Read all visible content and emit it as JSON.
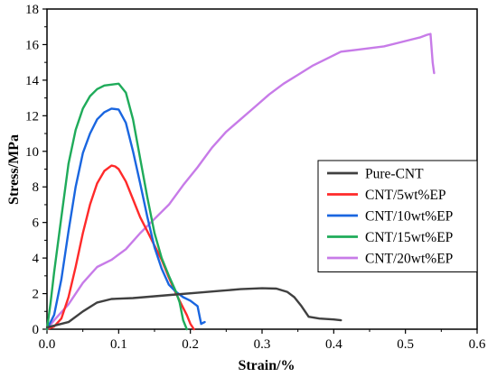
{
  "chart_data": {
    "type": "line",
    "xlabel": "Strain/%",
    "ylabel": "Stress/MPa",
    "xlim": [
      0.0,
      0.6
    ],
    "ylim": [
      0,
      18
    ],
    "xticks": [
      "0.0",
      "0.1",
      "0.2",
      "0.3",
      "0.4",
      "0.5",
      "0.6"
    ],
    "yticks": [
      "0",
      "2",
      "4",
      "6",
      "8",
      "10",
      "12",
      "14",
      "16",
      "18"
    ],
    "grid": false,
    "legend_position": "center-right",
    "series": [
      {
        "name": "Pure-CNT",
        "color": "#404040",
        "x": [
          0.0,
          0.01,
          0.03,
          0.05,
          0.07,
          0.09,
          0.12,
          0.15,
          0.18,
          0.21,
          0.24,
          0.27,
          0.3,
          0.32,
          0.335,
          0.345,
          0.355,
          0.365,
          0.38,
          0.4,
          0.41
        ],
        "y": [
          0.1,
          0.2,
          0.4,
          1.0,
          1.5,
          1.7,
          1.75,
          1.85,
          1.95,
          2.05,
          2.15,
          2.25,
          2.3,
          2.28,
          2.1,
          1.8,
          1.3,
          0.7,
          0.6,
          0.55,
          0.5
        ]
      },
      {
        "name": "CNT/5wt%EP",
        "color": "#ff2a2a",
        "x": [
          0.0,
          0.01,
          0.02,
          0.03,
          0.04,
          0.05,
          0.06,
          0.07,
          0.08,
          0.09,
          0.095,
          0.1,
          0.11,
          0.12,
          0.13,
          0.14,
          0.15,
          0.16,
          0.17,
          0.18,
          0.19,
          0.195,
          0.2,
          0.205
        ],
        "y": [
          0.0,
          0.15,
          0.6,
          1.8,
          3.5,
          5.4,
          7.0,
          8.2,
          8.9,
          9.2,
          9.15,
          9.0,
          8.3,
          7.3,
          6.3,
          5.5,
          4.7,
          3.9,
          2.9,
          2.0,
          1.2,
          0.8,
          0.3,
          0.0
        ]
      },
      {
        "name": "CNT/10wt%EP",
        "color": "#1a66e0",
        "x": [
          0.0,
          0.01,
          0.02,
          0.03,
          0.04,
          0.05,
          0.06,
          0.07,
          0.08,
          0.09,
          0.1,
          0.11,
          0.12,
          0.13,
          0.14,
          0.15,
          0.16,
          0.17,
          0.18,
          0.19,
          0.2,
          0.21,
          0.215,
          0.22
        ],
        "y": [
          0.0,
          0.8,
          2.8,
          5.5,
          8.0,
          9.9,
          11.0,
          11.8,
          12.2,
          12.4,
          12.35,
          11.6,
          10.0,
          8.2,
          6.3,
          4.6,
          3.4,
          2.5,
          2.1,
          1.8,
          1.6,
          1.3,
          0.3,
          0.4
        ]
      },
      {
        "name": "CNT/15wt%EP",
        "color": "#1fab5a",
        "x": [
          0.0,
          0.005,
          0.01,
          0.02,
          0.03,
          0.04,
          0.05,
          0.06,
          0.07,
          0.08,
          0.09,
          0.1,
          0.11,
          0.12,
          0.13,
          0.14,
          0.15,
          0.16,
          0.17,
          0.18,
          0.185,
          0.19,
          0.195
        ],
        "y": [
          0.0,
          1.5,
          3.2,
          6.3,
          9.3,
          11.2,
          12.4,
          13.1,
          13.5,
          13.7,
          13.75,
          13.8,
          13.3,
          11.8,
          9.6,
          7.4,
          5.4,
          4.0,
          3.0,
          2.1,
          1.5,
          0.5,
          0.0
        ]
      },
      {
        "name": "CNT/20wt%EP",
        "color": "#c77be8",
        "x": [
          0.0,
          0.01,
          0.03,
          0.05,
          0.07,
          0.09,
          0.11,
          0.13,
          0.15,
          0.17,
          0.19,
          0.21,
          0.23,
          0.25,
          0.27,
          0.29,
          0.31,
          0.33,
          0.35,
          0.37,
          0.39,
          0.41,
          0.43,
          0.45,
          0.47,
          0.49,
          0.51,
          0.52,
          0.53,
          0.535,
          0.538,
          0.54
        ],
        "y": [
          0.0,
          0.5,
          1.4,
          2.6,
          3.5,
          3.9,
          4.5,
          5.4,
          6.2,
          7.0,
          8.1,
          9.1,
          10.2,
          11.1,
          11.8,
          12.5,
          13.2,
          13.8,
          14.3,
          14.8,
          15.2,
          15.6,
          15.7,
          15.8,
          15.9,
          16.1,
          16.3,
          16.4,
          16.55,
          16.6,
          15.0,
          14.4
        ]
      }
    ]
  }
}
